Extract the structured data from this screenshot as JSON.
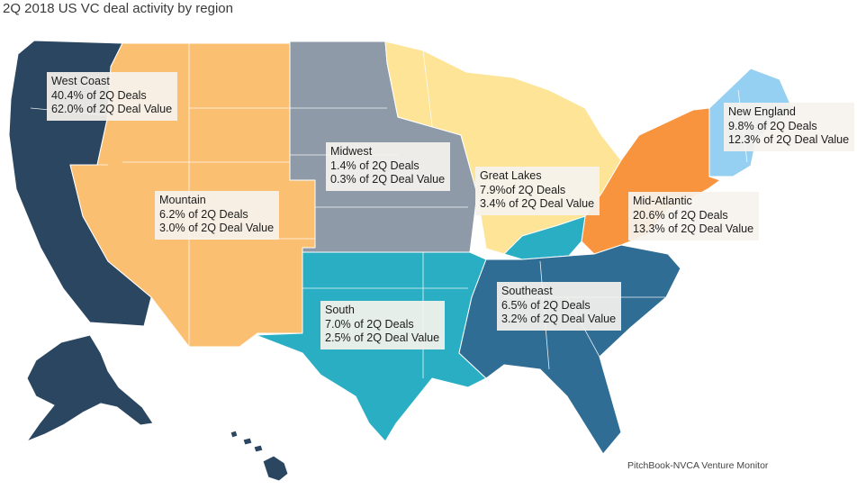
{
  "title": "2Q 2018 US VC deal activity by region",
  "source": "PitchBook-NVCA Venture Monitor",
  "regions": {
    "west_coast": {
      "name": "West Coast",
      "deals": "40.4% of 2Q Deals",
      "value": "62.0% of 2Q Deal Value",
      "color": "#2a4660"
    },
    "mountain": {
      "name": "Mountain",
      "deals": "6.2% of 2Q Deals",
      "value": "3.0% of 2Q Deal Value",
      "color": "#fbbf72"
    },
    "midwest": {
      "name": "Midwest",
      "deals": "1.4% of 2Q Deals",
      "value": "0.3% of 2Q Deal Value",
      "color": "#8e9aa8"
    },
    "great_lakes": {
      "name": "Great Lakes",
      "deals": "7.9%of 2Q Deals",
      "value": "3.4% of 2Q Deal Value",
      "color": "#fee496"
    },
    "new_england": {
      "name": "New England",
      "deals": "9.8% of 2Q Deals",
      "value": "12.3% of 2Q Deal Value",
      "color": "#95cff1"
    },
    "mid_atlantic": {
      "name": "Mid-Atlantic",
      "deals": "20.6% of 2Q Deals",
      "value": "13.3% of 2Q Deal Value",
      "color": "#f7943d"
    },
    "south": {
      "name": "South",
      "deals": "7.0% of 2Q Deals",
      "value": "2.5% of 2Q Deal Value",
      "color": "#2aaec3"
    },
    "southeast": {
      "name": "Southeast",
      "deals": "6.5% of 2Q Deals",
      "value": "3.2% of 2Q Deal Value",
      "color": "#2f6d95"
    }
  }
}
